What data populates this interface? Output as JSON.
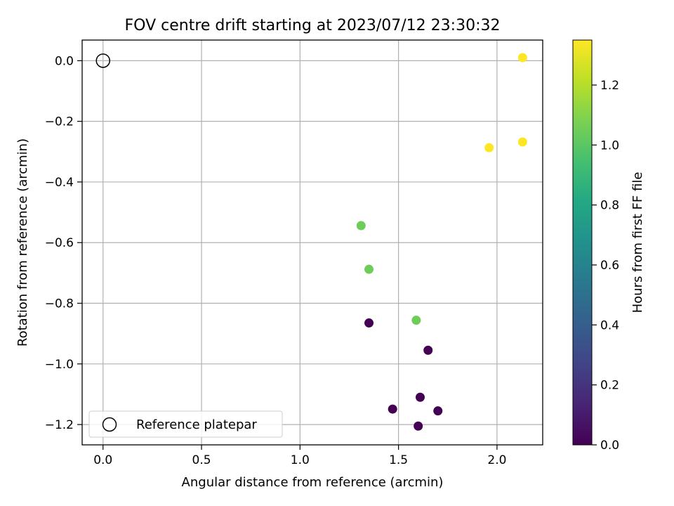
{
  "chart_data": {
    "type": "scatter",
    "title": "FOV centre drift starting at 2023/07/12 23:30:32",
    "xlabel": "Angular distance from reference (arcmin)",
    "ylabel": "Rotation from reference (arcmin)",
    "xlim": [
      -0.106,
      2.232
    ],
    "ylim": [
      -1.267,
      0.068
    ],
    "x_ticks": [
      0.0,
      0.5,
      1.0,
      1.5,
      2.0
    ],
    "x_tick_labels": [
      "0.0",
      "0.5",
      "1.0",
      "1.5",
      "2.0"
    ],
    "y_ticks": [
      0.0,
      -0.2,
      -0.4,
      -0.6,
      -0.8,
      -1.0,
      -1.2
    ],
    "y_tick_labels": [
      "0.0",
      "−0.2",
      "−0.4",
      "−0.6",
      "−0.8",
      "−1.0",
      "−1.2"
    ],
    "grid": true,
    "legend": {
      "placement": "lower-left",
      "entries": [
        "Reference platepar"
      ]
    },
    "reference_point": {
      "x": 0.0,
      "y": 0.0,
      "label": "Reference platepar"
    },
    "points": [
      {
        "x": 2.13,
        "y": 0.01,
        "hours": 1.35
      },
      {
        "x": 1.96,
        "y": -0.287,
        "hours": 1.35
      },
      {
        "x": 2.13,
        "y": -0.268,
        "hours": 1.35
      },
      {
        "x": 1.31,
        "y": -0.544,
        "hours": 1.05
      },
      {
        "x": 1.35,
        "y": -0.688,
        "hours": 1.05
      },
      {
        "x": 1.59,
        "y": -0.856,
        "hours": 1.05
      },
      {
        "x": 1.35,
        "y": -0.865,
        "hours": 0.0
      },
      {
        "x": 1.65,
        "y": -0.955,
        "hours": 0.0
      },
      {
        "x": 1.61,
        "y": -1.11,
        "hours": 0.0
      },
      {
        "x": 1.47,
        "y": -1.149,
        "hours": 0.0
      },
      {
        "x": 1.7,
        "y": -1.155,
        "hours": 0.0
      },
      {
        "x": 1.6,
        "y": -1.205,
        "hours": 0.0
      }
    ],
    "colorbar": {
      "label": "Hours from first FF file",
      "colormap": "viridis",
      "range": [
        0.0,
        1.35
      ],
      "ticks": [
        0.0,
        0.2,
        0.4,
        0.6,
        0.8,
        1.0,
        1.2
      ],
      "tick_labels": [
        "0.0",
        "0.2",
        "0.4",
        "0.6",
        "0.8",
        "1.0",
        "1.2"
      ]
    }
  }
}
